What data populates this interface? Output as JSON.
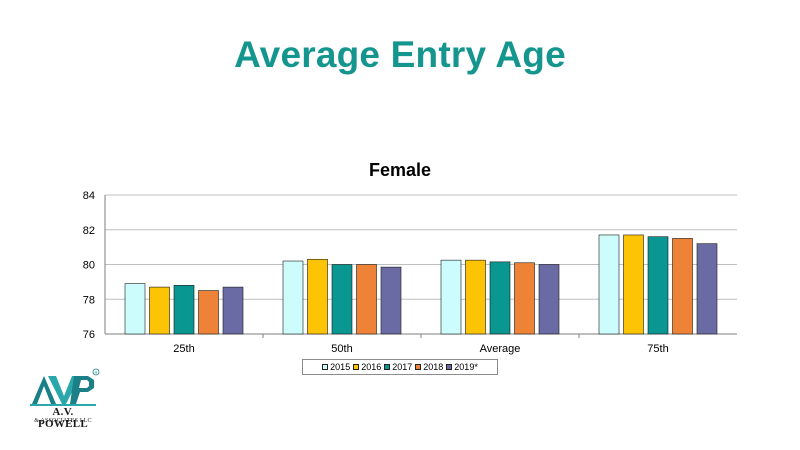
{
  "slide": {
    "title": "Average Entry Age"
  },
  "logo": {
    "name": "A.V. POWELL",
    "sub": "& ASSOCIATES LLC",
    "mark": "AVP",
    "registered": "®"
  },
  "colors": {
    "title": "#14968f",
    "series": [
      "#ccfcfc",
      "#fcc404",
      "#0a9691",
      "#ee8236",
      "#6a6aa4"
    ],
    "gridline": "#bfbfbf",
    "axis": "#7f7f7f"
  },
  "chart_data": {
    "type": "bar",
    "title": "Female",
    "xlabel": "",
    "ylabel": "",
    "categories": [
      "25th",
      "50th",
      "Average",
      "75th"
    ],
    "ylim": [
      76,
      84
    ],
    "yticks": [
      76,
      78,
      80,
      82,
      84
    ],
    "grid": true,
    "legend_position": "bottom",
    "series": [
      {
        "name": "2015",
        "values": [
          78.9,
          80.2,
          80.25,
          81.7
        ]
      },
      {
        "name": "2016",
        "values": [
          78.7,
          80.3,
          80.25,
          81.7
        ]
      },
      {
        "name": "2017",
        "values": [
          78.8,
          80.0,
          80.15,
          81.6
        ]
      },
      {
        "name": "2018",
        "values": [
          78.5,
          80.0,
          80.1,
          81.5
        ]
      },
      {
        "name": "2019*",
        "values": [
          78.7,
          79.85,
          80.0,
          81.2
        ]
      }
    ]
  }
}
